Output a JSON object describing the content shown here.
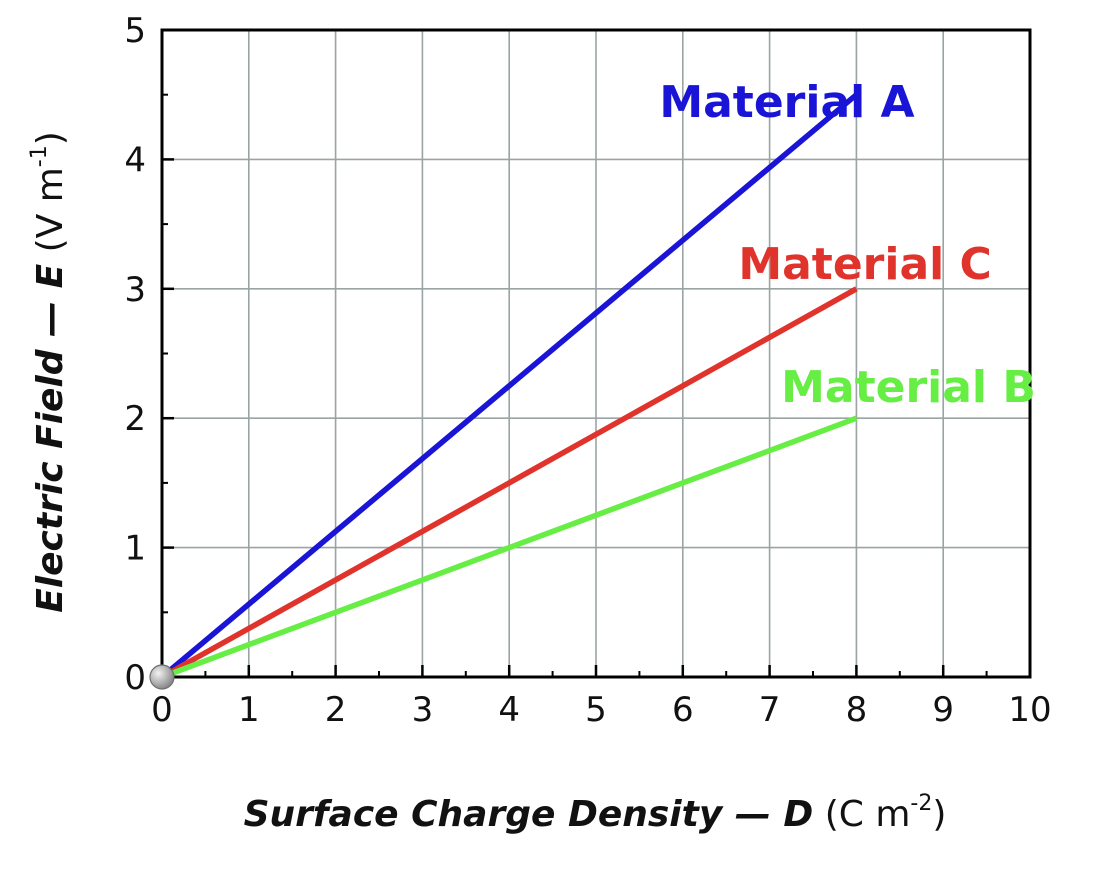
{
  "chart_data": {
    "type": "line",
    "title": "",
    "xlabel": {
      "main": "Surface Charge Density — D",
      "name": "Surface Charge Density — ",
      "symbol": "D",
      "unit_base": " (C m",
      "unit_exp": "-2",
      "unit_close": ")"
    },
    "ylabel": {
      "main": "Electric Field — E",
      "name": "Electric Field — ",
      "symbol": "E",
      "unit_base": " (V m",
      "unit_exp": "-1",
      "unit_close": ")"
    },
    "xlim": [
      0,
      10
    ],
    "ylim": [
      0,
      5
    ],
    "xticks": [
      "0",
      "1",
      "2",
      "3",
      "4",
      "5",
      "6",
      "7",
      "8",
      "9",
      "10"
    ],
    "yticks": [
      "0",
      "1",
      "2",
      "3",
      "4",
      "5"
    ],
    "grid": true,
    "legend": "inline labels",
    "origin_marker": {
      "x": 0,
      "y": 0,
      "color": "#8a8a8a"
    },
    "series": [
      {
        "name": "Material A",
        "color": "#1a14d6",
        "x": [
          0,
          8
        ],
        "y": [
          0,
          4.5
        ],
        "label_at": {
          "x": 7.2,
          "y": 4.45
        }
      },
      {
        "name": "Material C",
        "color": "#e0332b",
        "x": [
          0,
          8
        ],
        "y": [
          0,
          3.0
        ],
        "label_at": {
          "x": 8.1,
          "y": 3.2
        }
      },
      {
        "name": "Material B",
        "color": "#66ee44",
        "x": [
          0,
          8
        ],
        "y": [
          0,
          2.0
        ],
        "label_at": {
          "x": 8.6,
          "y": 2.25
        }
      }
    ]
  }
}
